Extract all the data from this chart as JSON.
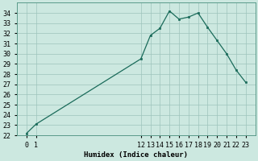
{
  "xlabel": "Humidex (Indice chaleur)",
  "ylabel": "",
  "background_color": "#cce8e0",
  "grid_color": "#9dc4bc",
  "line_color": "#1a6b5a",
  "marker_color": "#1a6b5a",
  "hours": [
    0,
    1,
    12,
    13,
    14,
    15,
    16,
    17,
    18,
    19,
    20,
    21,
    22,
    23
  ],
  "values": [
    22.2,
    23.1,
    29.5,
    31.8,
    32.5,
    34.2,
    33.4,
    33.6,
    34.0,
    32.6,
    31.3,
    30.0,
    28.4,
    27.2
  ],
  "ylim": [
    22,
    35
  ],
  "yticks": [
    22,
    23,
    24,
    25,
    26,
    27,
    28,
    29,
    30,
    31,
    32,
    33,
    34
  ],
  "xlim": [
    -1,
    24
  ],
  "xtick_positions": [
    0,
    1,
    12,
    13,
    14,
    15,
    16,
    17,
    18,
    19,
    20,
    21,
    22,
    23
  ],
  "xtick_labels": [
    "0",
    "1",
    "12",
    "13",
    "14",
    "15",
    "16",
    "17",
    "18",
    "19",
    "20",
    "21",
    "22",
    "23"
  ]
}
